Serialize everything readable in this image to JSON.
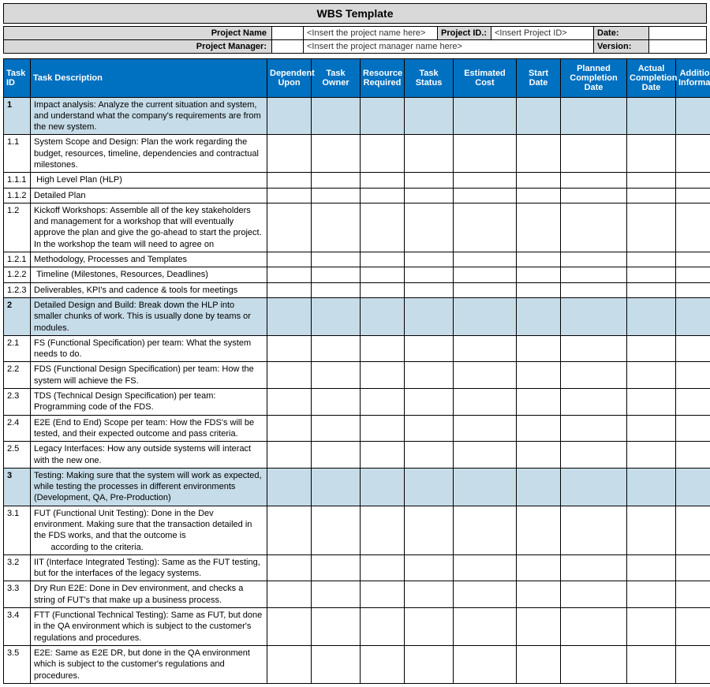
{
  "title": "WBS Template",
  "meta": {
    "project_name_label": "Project Name",
    "project_name_placeholder": "<Insert the project name here>",
    "project_id_label": "Project ID.:",
    "project_id_placeholder": "<Insert Project ID>",
    "date_label": "Date:",
    "date_value": "",
    "pm_label": "Project Manager:",
    "pm_placeholder": "<Insert the project manager name here>",
    "version_label": "Version:",
    "version_value": ""
  },
  "columns": [
    "Task ID",
    "Task Description",
    "Dependent Upon",
    "Task Owner",
    "Resource Required",
    "Task Status",
    "Estimated Cost",
    "Start Date",
    "Planned Completion Date",
    "Actual Completion Date",
    "Additional Information"
  ],
  "rows": [
    {
      "id": "1",
      "section": true,
      "desc": "Impact analysis: Analyze the current situation and system, and understand what the company's requirements are from the new system."
    },
    {
      "id": "1.1",
      "section": false,
      "desc": "System Scope and Design: Plan the work regarding the budget, resources, timeline, dependencies and contractual milestones."
    },
    {
      "id": "1.1.1",
      "section": false,
      "desc": " High Level Plan (HLP)"
    },
    {
      "id": "1.1.2",
      "section": false,
      "desc": "Detailed Plan"
    },
    {
      "id": "1.2",
      "section": false,
      "desc": "Kickoff Workshops: Assemble all of the key stakeholders and management for a workshop that will eventually approve the plan and give the go-ahead to start the project. In the workshop the team will need to agree on"
    },
    {
      "id": "1.2.1",
      "section": false,
      "desc": "Methodology, Processes and Templates"
    },
    {
      "id": "1.2.2",
      "section": false,
      "desc": " Timeline (Milestones, Resources, Deadlines)"
    },
    {
      "id": "1.2.3",
      "section": false,
      "desc": "Deliverables, KPI's and cadence & tools for meetings"
    },
    {
      "id": "2",
      "section": true,
      "desc": "Detailed Design and Build: Break down the HLP into smaller chunks of work. This is usually done by teams or modules."
    },
    {
      "id": "2.1",
      "section": false,
      "desc": "FS (Functional Specification) per team: What the system needs to do."
    },
    {
      "id": "2.2",
      "section": false,
      "desc": "FDS (Functional Design Specification) per team: How the system will achieve the FS."
    },
    {
      "id": "2.3",
      "section": false,
      "desc": "TDS (Technical Design Specification) per team: Programming code of the FDS."
    },
    {
      "id": "2.4",
      "section": false,
      "desc": "E2E (End to End) Scope per team: How the FDS's will be tested, and their expected outcome and pass criteria."
    },
    {
      "id": "2.5",
      "section": false,
      "desc": "Legacy Interfaces: How any outside systems will interact with the new one."
    },
    {
      "id": "3",
      "section": true,
      "desc": "Testing: Making sure that the system will work as expected, while testing the processes in different environments (Development, QA, Pre-Production)"
    },
    {
      "id": "3.1",
      "section": false,
      "desc": "FUT (Functional Unit Testing): Done in the Dev environment. Making sure that the transaction detailed in the FDS works, and that the outcome is\n       according to the criteria."
    },
    {
      "id": "3.2",
      "section": false,
      "desc": "IIT (Interface Integrated Testing): Same as the FUT testing, but for the interfaces of the legacy systems."
    },
    {
      "id": "3.3",
      "section": false,
      "desc": "Dry Run E2E: Done in Dev environment, and checks a string of FUT's that make up a business process."
    },
    {
      "id": "3.4",
      "section": false,
      "desc": "FTT (Functional Technical Testing): Same as FUT, but done in the QA environment which is subject to the customer's regulations and procedures."
    },
    {
      "id": "3.5",
      "section": false,
      "desc": "E2E: Same as E2E DR, but done in the QA environment which is subject to the customer's regulations and procedures."
    }
  ],
  "colors": {
    "header_bg": "#0070c0",
    "header_fg": "#ffffff",
    "section_bg": "#c6dce8",
    "title_bg": "#d9d9d9",
    "border": "#000000"
  }
}
